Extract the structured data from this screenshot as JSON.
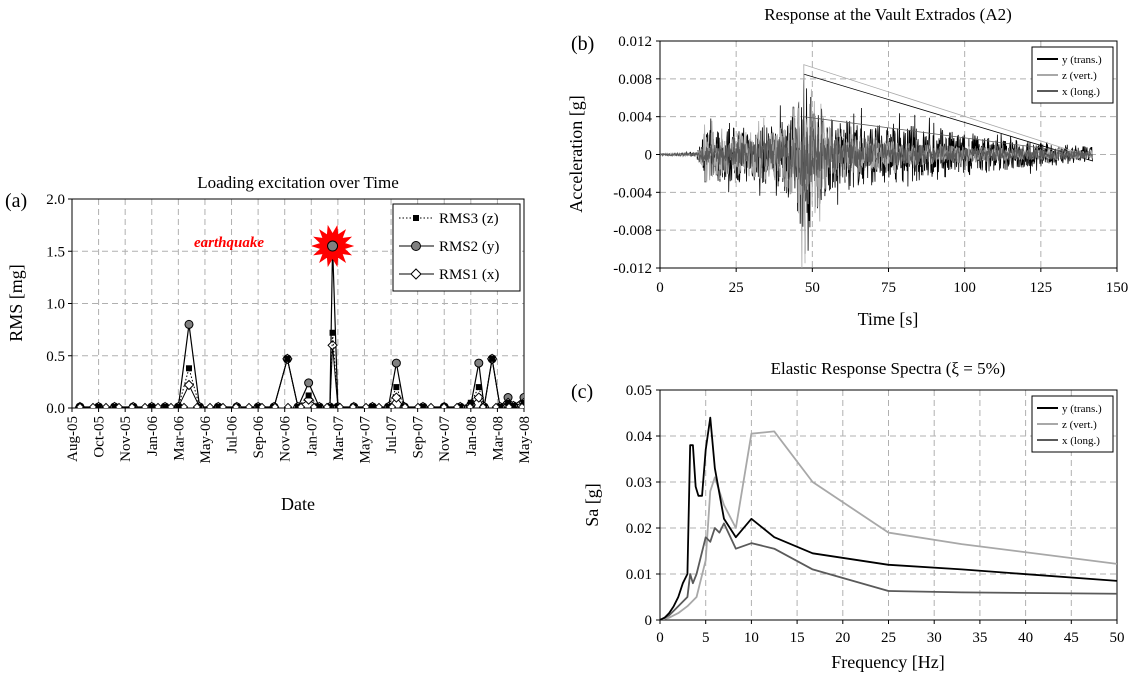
{
  "colors": {
    "black": "#000000",
    "light_gray": "#a8a8a8",
    "dark_gray": "#5a5a5a",
    "earthquake_red": "#ff0000",
    "grid": "#b0b0b0"
  },
  "panel_a": {
    "tag": "(a)",
    "earthquake_label": "earthquake",
    "earthquake_icon": "starburst-icon",
    "chart_data": {
      "type": "line",
      "title": "Loading excitation over Time",
      "xlabel": "Date",
      "ylabel": "RMS [mg]",
      "ylim": [
        0,
        2.0
      ],
      "yticks": [
        "0.0",
        "0.5",
        "1.0",
        "1.5",
        "2.0"
      ],
      "xticks": [
        "Aug-05",
        "Oct-05",
        "Nov-05",
        "Jan-06",
        "Mar-06",
        "May-06",
        "Jul-06",
        "Sep-06",
        "Nov-06",
        "Jan-07",
        "Mar-07",
        "May-07",
        "Jul-07",
        "Sep-07",
        "Nov-07",
        "Jan-08",
        "Mar-08",
        "May-08"
      ],
      "grid": true,
      "legend_position": "top-right",
      "series": [
        {
          "name": "RMS3 (z)",
          "marker": "square",
          "line": "dotted",
          "points": [
            [
              0.3,
              0.01
            ],
            [
              1.0,
              0.01
            ],
            [
              1.6,
              0.01
            ],
            [
              2.3,
              0.01
            ],
            [
              3.0,
              0.01
            ],
            [
              3.5,
              0.01
            ],
            [
              4.0,
              0.01
            ],
            [
              4.4,
              0.38
            ],
            [
              4.8,
              0.01
            ],
            [
              5.5,
              0.01
            ],
            [
              6.2,
              0.01
            ],
            [
              7.0,
              0.01
            ],
            [
              7.6,
              0.01
            ],
            [
              8.1,
              0.47
            ],
            [
              8.5,
              0.01
            ],
            [
              8.9,
              0.12
            ],
            [
              9.3,
              0.01
            ],
            [
              9.7,
              0.01
            ],
            [
              9.8,
              0.72
            ],
            [
              10.0,
              0.01
            ],
            [
              10.6,
              0.01
            ],
            [
              11.3,
              0.01
            ],
            [
              11.9,
              0.01
            ],
            [
              12.2,
              0.2
            ],
            [
              12.5,
              0.01
            ],
            [
              13.2,
              0.01
            ],
            [
              14.0,
              0.01
            ],
            [
              14.6,
              0.01
            ],
            [
              15.0,
              0.05
            ],
            [
              15.3,
              0.2
            ],
            [
              15.5,
              0.01
            ],
            [
              15.8,
              0.47
            ],
            [
              16.1,
              0.01
            ],
            [
              16.4,
              0.05
            ],
            [
              16.6,
              0.02
            ],
            [
              17.0,
              0.05
            ]
          ]
        },
        {
          "name": "RMS2 (y)",
          "marker": "circle",
          "line": "solid",
          "points": [
            [
              0.3,
              0.01
            ],
            [
              1.0,
              0.01
            ],
            [
              1.6,
              0.01
            ],
            [
              2.3,
              0.01
            ],
            [
              3.0,
              0.01
            ],
            [
              3.5,
              0.01
            ],
            [
              4.0,
              0.01
            ],
            [
              4.4,
              0.8
            ],
            [
              4.8,
              0.01
            ],
            [
              5.5,
              0.01
            ],
            [
              6.2,
              0.01
            ],
            [
              7.0,
              0.01
            ],
            [
              7.6,
              0.01
            ],
            [
              8.1,
              0.47
            ],
            [
              8.5,
              0.01
            ],
            [
              8.9,
              0.24
            ],
            [
              9.3,
              0.01
            ],
            [
              9.7,
              0.01
            ],
            [
              9.8,
              1.55
            ],
            [
              10.0,
              0.01
            ],
            [
              10.6,
              0.01
            ],
            [
              11.3,
              0.01
            ],
            [
              11.9,
              0.01
            ],
            [
              12.2,
              0.43
            ],
            [
              12.5,
              0.01
            ],
            [
              13.2,
              0.01
            ],
            [
              14.0,
              0.01
            ],
            [
              14.6,
              0.01
            ],
            [
              15.0,
              0.03
            ],
            [
              15.3,
              0.43
            ],
            [
              15.5,
              0.01
            ],
            [
              15.8,
              0.47
            ],
            [
              16.1,
              0.01
            ],
            [
              16.4,
              0.1
            ],
            [
              16.6,
              0.02
            ],
            [
              17.0,
              0.1
            ]
          ]
        },
        {
          "name": "RMS1 (x)",
          "marker": "diamond",
          "line": "solid",
          "points": [
            [
              0.3,
              0.01
            ],
            [
              1.0,
              0.01
            ],
            [
              1.6,
              0.01
            ],
            [
              2.3,
              0.01
            ],
            [
              3.0,
              0.01
            ],
            [
              3.5,
              0.01
            ],
            [
              4.0,
              0.01
            ],
            [
              4.4,
              0.22
            ],
            [
              4.8,
              0.01
            ],
            [
              5.5,
              0.01
            ],
            [
              6.2,
              0.01
            ],
            [
              7.0,
              0.01
            ],
            [
              7.6,
              0.01
            ],
            [
              8.1,
              0.47
            ],
            [
              8.5,
              0.01
            ],
            [
              8.9,
              0.08
            ],
            [
              9.3,
              0.01
            ],
            [
              9.7,
              0.01
            ],
            [
              9.8,
              0.6
            ],
            [
              10.0,
              0.01
            ],
            [
              10.6,
              0.01
            ],
            [
              11.3,
              0.01
            ],
            [
              11.9,
              0.01
            ],
            [
              12.2,
              0.1
            ],
            [
              12.5,
              0.01
            ],
            [
              13.2,
              0.01
            ],
            [
              14.0,
              0.01
            ],
            [
              14.6,
              0.01
            ],
            [
              15.0,
              0.03
            ],
            [
              15.3,
              0.1
            ],
            [
              15.5,
              0.01
            ],
            [
              15.8,
              0.47
            ],
            [
              16.1,
              0.01
            ],
            [
              16.4,
              0.05
            ],
            [
              16.6,
              0.02
            ],
            [
              17.0,
              0.05
            ]
          ]
        }
      ]
    }
  },
  "panel_b": {
    "tag": "(b)",
    "chart_data": {
      "type": "line",
      "title": "Response at the Vault Extrados (A2)",
      "xlabel": "Time [s]",
      "ylabel": "Acceleration [g]",
      "xlim": [
        0,
        150
      ],
      "ylim": [
        -0.012,
        0.012
      ],
      "xticks": [
        "0",
        "25",
        "50",
        "75",
        "100",
        "125",
        "150"
      ],
      "yticks": [
        "0.012",
        "0.008",
        "0.004",
        "0",
        "-0.004",
        "-0.008",
        "-0.012"
      ],
      "grid": true,
      "legend_position": "top-right",
      "series": [
        {
          "name": "y (trans.)",
          "color": "#000000",
          "peak_positive": 0.0085,
          "peak_negative": -0.0105,
          "envelope": [
            [
              0,
              0.0001
            ],
            [
              12,
              0.0002
            ],
            [
              15,
              0.0025
            ],
            [
              20,
              0.003
            ],
            [
              30,
              0.003
            ],
            [
              40,
              0.0035
            ],
            [
              45,
              0.006
            ],
            [
              47,
              0.0085
            ],
            [
              50,
              0.007
            ],
            [
              55,
              0.004
            ],
            [
              65,
              0.0035
            ],
            [
              75,
              0.003
            ],
            [
              90,
              0.0028
            ],
            [
              105,
              0.002
            ],
            [
              120,
              0.0015
            ],
            [
              135,
              0.001
            ],
            [
              142,
              0.0008
            ]
          ]
        },
        {
          "name": "z (vert.)",
          "color": "#a8a8a8",
          "peak_positive": 0.0095,
          "peak_negative": -0.0115,
          "envelope": [
            [
              0,
              0.0001
            ],
            [
              12,
              0.0002
            ],
            [
              15,
              0.003
            ],
            [
              20,
              0.002
            ],
            [
              30,
              0.0025
            ],
            [
              40,
              0.003
            ],
            [
              45,
              0.006
            ],
            [
              47,
              0.0095
            ],
            [
              50,
              0.007
            ],
            [
              55,
              0.003
            ],
            [
              65,
              0.002
            ],
            [
              75,
              0.0015
            ],
            [
              90,
              0.001
            ],
            [
              105,
              0.0008
            ],
            [
              120,
              0.0006
            ],
            [
              135,
              0.0005
            ],
            [
              142,
              0.0004
            ]
          ]
        },
        {
          "name": "x (long.)",
          "color": "#5a5a5a",
          "peak_positive": 0.004,
          "peak_negative": -0.004,
          "envelope": [
            [
              0,
              0.0001
            ],
            [
              12,
              0.0002
            ],
            [
              15,
              0.0012
            ],
            [
              20,
              0.0012
            ],
            [
              30,
              0.0015
            ],
            [
              40,
              0.002
            ],
            [
              45,
              0.003
            ],
            [
              47,
              0.004
            ],
            [
              50,
              0.003
            ],
            [
              55,
              0.002
            ],
            [
              65,
              0.0015
            ],
            [
              75,
              0.0012
            ],
            [
              90,
              0.001
            ],
            [
              105,
              0.0008
            ],
            [
              120,
              0.0006
            ],
            [
              135,
              0.0005
            ],
            [
              142,
              0.0004
            ]
          ]
        }
      ]
    }
  },
  "panel_c": {
    "tag": "(c)",
    "chart_data": {
      "type": "line",
      "title": "Elastic Response Spectra (ξ = 5%)",
      "xlabel": "Frequency [Hz]",
      "ylabel": "Sa [g]",
      "xlim": [
        0,
        50
      ],
      "ylim": [
        0,
        0.05
      ],
      "xticks": [
        "0",
        "5",
        "10",
        "15",
        "20",
        "25",
        "30",
        "35",
        "40",
        "45",
        "50"
      ],
      "yticks": [
        "0.05",
        "0.04",
        "0.03",
        "0.02",
        "0.01",
        "0"
      ],
      "grid": true,
      "legend_position": "top-right",
      "series": [
        {
          "name": "y (trans.)",
          "color": "#000000",
          "points": [
            [
              0,
              0
            ],
            [
              0.5,
              0.0005
            ],
            [
              1,
              0.0015
            ],
            [
              1.5,
              0.003
            ],
            [
              2,
              0.005
            ],
            [
              2.5,
              0.008
            ],
            [
              3,
              0.01
            ],
            [
              3.3,
              0.038
            ],
            [
              3.6,
              0.038
            ],
            [
              3.9,
              0.029
            ],
            [
              4.2,
              0.027
            ],
            [
              4.6,
              0.027
            ],
            [
              5,
              0.037
            ],
            [
              5.5,
              0.044
            ],
            [
              6,
              0.033
            ],
            [
              7,
              0.022
            ],
            [
              8.3,
              0.018
            ],
            [
              10,
              0.022
            ],
            [
              12.5,
              0.018
            ],
            [
              16.7,
              0.0145
            ],
            [
              25,
              0.012
            ],
            [
              33,
              0.011
            ],
            [
              50,
              0.0085
            ]
          ]
        },
        {
          "name": "z (vert.)",
          "color": "#a8a8a8",
          "points": [
            [
              0,
              0
            ],
            [
              1,
              0.0005
            ],
            [
              2,
              0.0015
            ],
            [
              3,
              0.003
            ],
            [
              4,
              0.005
            ],
            [
              5,
              0.013
            ],
            [
              5.5,
              0.028
            ],
            [
              6,
              0.031
            ],
            [
              6.5,
              0.028
            ],
            [
              7,
              0.025
            ],
            [
              8.3,
              0.02
            ],
            [
              10,
              0.0405
            ],
            [
              12.5,
              0.041
            ],
            [
              16.7,
              0.03
            ],
            [
              25,
              0.019
            ],
            [
              33,
              0.0165
            ],
            [
              50,
              0.0122
            ]
          ]
        },
        {
          "name": "x (long.)",
          "color": "#5a5a5a",
          "points": [
            [
              0,
              0
            ],
            [
              1,
              0.001
            ],
            [
              2,
              0.003
            ],
            [
              3,
              0.005
            ],
            [
              3.3,
              0.01
            ],
            [
              3.6,
              0.008
            ],
            [
              4,
              0.01
            ],
            [
              5,
              0.018
            ],
            [
              5.5,
              0.017
            ],
            [
              6,
              0.02
            ],
            [
              6.5,
              0.019
            ],
            [
              7,
              0.021
            ],
            [
              8.3,
              0.0155
            ],
            [
              10,
              0.0167
            ],
            [
              12.5,
              0.0155
            ],
            [
              16.7,
              0.011
            ],
            [
              25,
              0.0063
            ],
            [
              33,
              0.006
            ],
            [
              50,
              0.0057
            ]
          ]
        }
      ]
    }
  }
}
